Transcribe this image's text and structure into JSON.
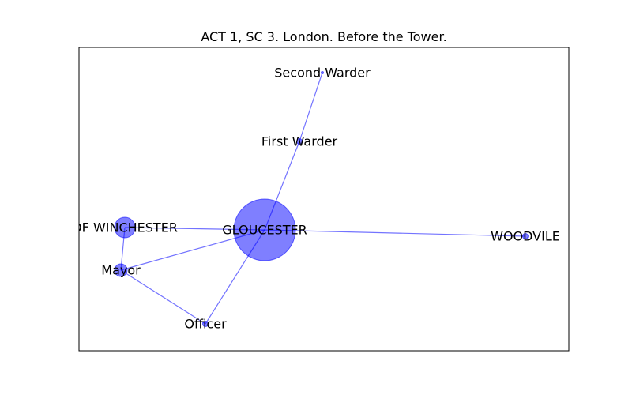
{
  "title": "ACT 1, SC 3. London. Before the Tower.",
  "colors": {
    "node": "#0000ff",
    "edge": "#0000ff"
  },
  "graph": {
    "nodes": [
      {
        "id": "gloucester",
        "label": "GLOUCESTER",
        "weight": 9
      },
      {
        "id": "winchester",
        "label": "OF WINCHESTER",
        "weight": 3
      },
      {
        "id": "mayor",
        "label": "Mayor",
        "weight": 2
      },
      {
        "id": "officer",
        "label": "Officer",
        "weight": 1
      },
      {
        "id": "woodvile",
        "label": "WOODVILE",
        "weight": 1
      },
      {
        "id": "first-warder",
        "label": "First Warder",
        "weight": 1
      },
      {
        "id": "second-warder",
        "label": "Second Warder",
        "weight": 0
      }
    ],
    "edges": [
      [
        "gloucester",
        "winchester"
      ],
      [
        "gloucester",
        "mayor"
      ],
      [
        "gloucester",
        "officer"
      ],
      [
        "gloucester",
        "woodvile"
      ],
      [
        "gloucester",
        "first-warder"
      ],
      [
        "first-warder",
        "second-warder"
      ],
      [
        "winchester",
        "mayor"
      ],
      [
        "mayor",
        "officer"
      ]
    ]
  }
}
